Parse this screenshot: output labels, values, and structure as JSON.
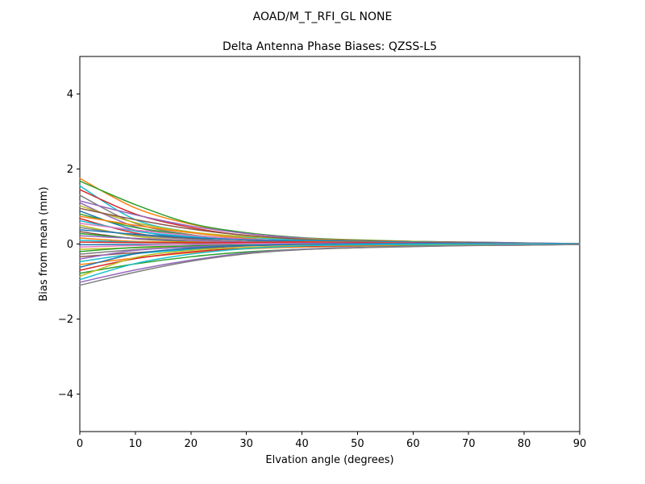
{
  "figure": {
    "suptitle": "AOAD/M_T_RFI_GL NONE",
    "background": "#ffffff",
    "axis_color": "#000000"
  },
  "chart_data": {
    "type": "line",
    "title": "Delta Antenna Phase Biases: QZSS-L5",
    "xlabel": "Elvation angle (degrees)",
    "ylabel": "Bias from mean (mm)",
    "xlim": [
      0,
      90
    ],
    "ylim": [
      -5,
      5
    ],
    "xticks": [
      0,
      10,
      20,
      30,
      40,
      50,
      60,
      70,
      80,
      90
    ],
    "xtick_labels": [
      "0",
      "10",
      "20",
      "30",
      "40",
      "50",
      "60",
      "70",
      "80",
      "90"
    ],
    "yticks": [
      -4,
      -2,
      0,
      2,
      4
    ],
    "ytick_labels": [
      "−4",
      "−2",
      "0",
      "2",
      "4"
    ],
    "grid": false,
    "legend_position": "none",
    "line_width": 1.5,
    "palette": {
      "C0": "#1f77b4",
      "C1": "#ff7f0e",
      "C2": "#2ca02c",
      "C3": "#d62728",
      "C4": "#9467bd",
      "C5": "#8c564b",
      "C6": "#e377c2",
      "C7": "#7f7f7f",
      "C8": "#bcbd22",
      "C9": "#17becf"
    },
    "x": [
      0,
      10,
      20,
      30,
      40,
      50,
      60,
      70,
      80,
      90
    ],
    "series": [
      {
        "color": "C1",
        "values": [
          1.75,
          0.96,
          0.53,
          0.28,
          0.16,
          0.1,
          0.06,
          0.04,
          0.02,
          0.01
        ]
      },
      {
        "color": "C2",
        "values": [
          1.68,
          1.05,
          0.55,
          0.3,
          0.17,
          0.11,
          0.07,
          0.05,
          0.03,
          0.01
        ]
      },
      {
        "color": "C9",
        "values": [
          1.55,
          0.65,
          0.32,
          0.18,
          0.12,
          0.08,
          0.06,
          0.03,
          0.02,
          0.01
        ]
      },
      {
        "color": "C3",
        "values": [
          1.45,
          0.8,
          0.44,
          0.23,
          0.13,
          0.08,
          0.05,
          0.03,
          0.02,
          0.01
        ]
      },
      {
        "color": "C7",
        "values": [
          1.3,
          0.55,
          0.25,
          0.11,
          0.04,
          0.01,
          0.01,
          0.0,
          0.0,
          0.0
        ]
      },
      {
        "color": "C4",
        "values": [
          1.15,
          0.78,
          0.48,
          0.28,
          0.16,
          0.1,
          0.07,
          0.05,
          0.03,
          0.01
        ]
      },
      {
        "color": "C4",
        "values": [
          1.1,
          0.46,
          0.22,
          0.11,
          0.06,
          0.03,
          0.02,
          0.01,
          0.01,
          0.01
        ]
      },
      {
        "color": "C8",
        "values": [
          1.02,
          0.57,
          0.32,
          0.2,
          0.14,
          0.1,
          0.07,
          0.04,
          0.02,
          0.01
        ]
      },
      {
        "color": "C5",
        "values": [
          0.95,
          0.65,
          0.4,
          0.23,
          0.13,
          0.09,
          0.06,
          0.04,
          0.02,
          0.01
        ]
      },
      {
        "color": "C0",
        "values": [
          0.88,
          0.37,
          0.16,
          0.05,
          -0.01,
          -0.02,
          -0.01,
          -0.01,
          0.0,
          0.0
        ]
      },
      {
        "color": "C2",
        "values": [
          0.8,
          0.44,
          0.24,
          0.13,
          0.07,
          0.04,
          0.03,
          0.02,
          0.01,
          0.01
        ]
      },
      {
        "color": "C1",
        "values": [
          0.74,
          0.5,
          0.3,
          0.15,
          0.06,
          0.03,
          0.02,
          0.01,
          0.01,
          0.01
        ]
      },
      {
        "color": "C3",
        "values": [
          0.68,
          0.29,
          0.14,
          0.07,
          0.03,
          0.02,
          0.01,
          0.01,
          0.01,
          0.0
        ]
      },
      {
        "color": "C9",
        "values": [
          0.62,
          0.34,
          0.2,
          0.13,
          0.1,
          0.07,
          0.05,
          0.03,
          0.02,
          0.01
        ]
      },
      {
        "color": "C6",
        "values": [
          0.55,
          0.37,
          0.23,
          0.13,
          0.08,
          0.05,
          0.03,
          0.02,
          0.01,
          0.01
        ]
      },
      {
        "color": "C8",
        "values": [
          0.5,
          0.21,
          0.09,
          0.02,
          -0.02,
          -0.02,
          -0.01,
          -0.01,
          0.0,
          0.0
        ]
      },
      {
        "color": "C7",
        "values": [
          0.44,
          0.24,
          0.13,
          0.07,
          0.04,
          0.02,
          0.02,
          0.01,
          0.01,
          0.0
        ]
      },
      {
        "color": "C0",
        "values": [
          0.38,
          0.26,
          0.17,
          0.11,
          0.08,
          0.06,
          0.04,
          0.03,
          0.02,
          0.01
        ]
      },
      {
        "color": "C5",
        "values": [
          0.33,
          0.14,
          0.07,
          0.03,
          0.02,
          0.01,
          0.01,
          0.0,
          0.0,
          0.0
        ]
      },
      {
        "color": "C2",
        "values": [
          0.28,
          0.15,
          0.07,
          0.01,
          -0.03,
          -0.03,
          -0.02,
          -0.01,
          -0.01,
          0.0
        ]
      },
      {
        "color": "C4",
        "values": [
          0.22,
          0.15,
          0.09,
          0.05,
          0.03,
          0.02,
          0.01,
          0.01,
          0.01,
          0.0
        ]
      },
      {
        "color": "C1",
        "values": [
          0.16,
          0.07,
          0.05,
          0.04,
          0.06,
          0.05,
          0.03,
          0.02,
          0.01,
          0.0
        ]
      },
      {
        "color": "C9",
        "values": [
          0.1,
          0.05,
          0.02,
          -0.01,
          -0.02,
          -0.02,
          -0.01,
          -0.01,
          0.0,
          0.0
        ]
      },
      {
        "color": "C3",
        "values": [
          0.05,
          0.04,
          0.03,
          0.04,
          0.05,
          0.04,
          0.03,
          0.02,
          0.01,
          0.0
        ]
      },
      {
        "color": "C0",
        "values": [
          -0.02,
          -0.01,
          -0.02,
          -0.03,
          -0.04,
          -0.04,
          -0.03,
          -0.02,
          -0.01,
          0.0
        ]
      },
      {
        "color": "C6",
        "values": [
          -0.08,
          -0.04,
          -0.01,
          0.01,
          0.02,
          0.02,
          0.02,
          0.01,
          0.01,
          0.0
        ]
      },
      {
        "color": "C8",
        "values": [
          -0.14,
          -0.1,
          -0.06,
          -0.03,
          -0.02,
          -0.01,
          -0.01,
          -0.01,
          0.0,
          0.0
        ]
      },
      {
        "color": "C2",
        "values": [
          -0.2,
          -0.09,
          -0.05,
          -0.03,
          -0.04,
          -0.03,
          -0.02,
          -0.01,
          -0.01,
          0.0
        ]
      },
      {
        "color": "C7",
        "values": [
          -0.27,
          -0.15,
          -0.08,
          -0.04,
          -0.02,
          -0.01,
          -0.01,
          -0.01,
          0.0,
          0.0
        ]
      },
      {
        "color": "C5",
        "values": [
          -0.34,
          -0.23,
          -0.13,
          -0.05,
          -0.01,
          0.0,
          0.0,
          0.0,
          0.0,
          0.0
        ]
      },
      {
        "color": "C4",
        "values": [
          -0.4,
          -0.17,
          -0.08,
          -0.04,
          -0.02,
          -0.01,
          -0.01,
          0.0,
          0.0,
          0.0
        ]
      },
      {
        "color": "C9",
        "values": [
          -0.47,
          -0.26,
          -0.15,
          -0.1,
          -0.08,
          -0.06,
          -0.04,
          -0.03,
          -0.01,
          -0.01
        ]
      },
      {
        "color": "C1",
        "values": [
          -0.55,
          -0.37,
          -0.23,
          -0.13,
          -0.08,
          -0.05,
          -0.03,
          -0.02,
          -0.01,
          -0.01
        ]
      },
      {
        "color": "C0",
        "values": [
          -0.62,
          -0.26,
          -0.11,
          -0.04,
          0.0,
          0.01,
          0.01,
          0.01,
          0.0,
          0.0
        ]
      },
      {
        "color": "C3",
        "values": [
          -0.7,
          -0.39,
          -0.21,
          -0.11,
          -0.06,
          -0.04,
          -0.02,
          -0.02,
          -0.01,
          -0.01
        ]
      },
      {
        "color": "C2",
        "values": [
          -0.78,
          -0.53,
          -0.34,
          -0.21,
          -0.14,
          -0.1,
          -0.05,
          -0.03,
          -0.02,
          -0.01
        ]
      },
      {
        "color": "C8",
        "values": [
          -0.86,
          -0.36,
          -0.17,
          -0.09,
          -0.04,
          -0.03,
          -0.02,
          -0.01,
          -0.01,
          0.0
        ]
      },
      {
        "color": "C9",
        "values": [
          -0.95,
          -0.52,
          -0.27,
          -0.12,
          -0.05,
          -0.02,
          -0.01,
          0.0,
          0.0,
          0.0
        ]
      },
      {
        "color": "C4",
        "values": [
          -1.02,
          -0.69,
          -0.43,
          -0.24,
          -0.14,
          -0.09,
          -0.06,
          -0.04,
          -0.03,
          -0.01
        ]
      },
      {
        "color": "C7",
        "values": [
          -1.1,
          -0.75,
          -0.46,
          -0.26,
          -0.15,
          -0.1,
          -0.07,
          -0.04,
          -0.03,
          -0.01
        ]
      }
    ]
  }
}
